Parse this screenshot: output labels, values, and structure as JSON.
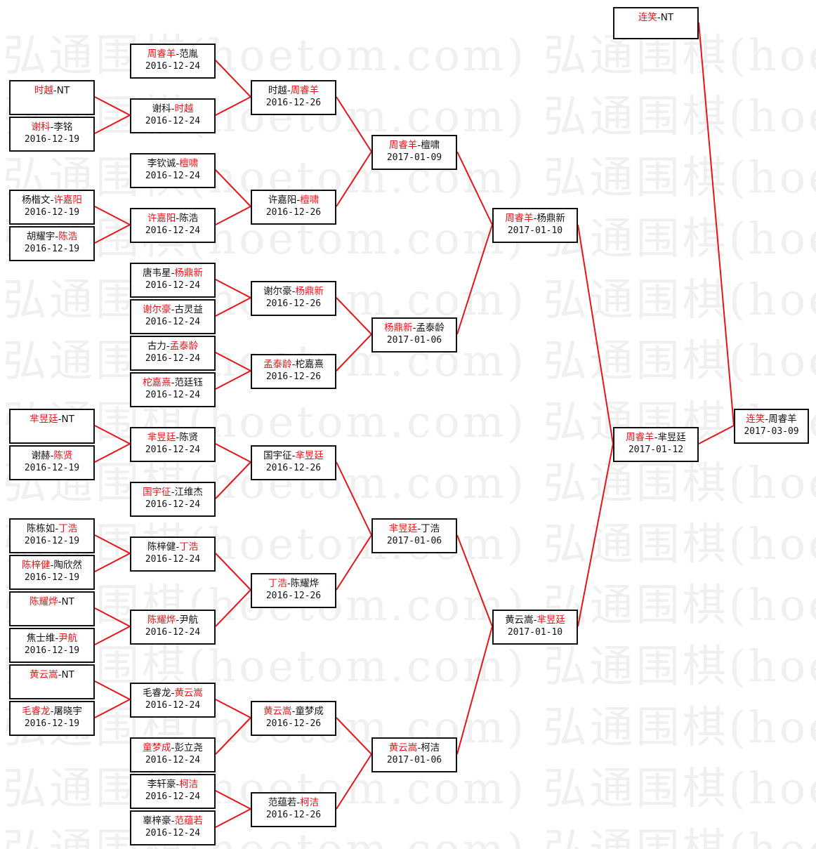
{
  "watermark": "弘通围棋(hoetom.com) 弘通围棋(hoetom.com)",
  "colors": {
    "winner": "#e8141a",
    "line": "#e8141a",
    "text": "#111111",
    "border": "#111111",
    "watermark": "#f0f0f0"
  },
  "matches": [
    {
      "p1": "时越",
      "sep": "-",
      "p2": "NT",
      "winner": 1,
      "date": ""
    },
    {
      "p1": "谢科",
      "sep": "-",
      "p2": "李铭",
      "winner": 1,
      "date": "2016-12-19"
    },
    {
      "p1": "杨楷文",
      "sep": "-",
      "p2": "许嘉阳",
      "winner": 2,
      "date": "2016-12-19"
    },
    {
      "p1": "胡耀宇",
      "sep": "-",
      "p2": "陈浩",
      "winner": 2,
      "date": "2016-12-19"
    },
    {
      "p1": "芈昱廷",
      "sep": "-",
      "p2": "NT",
      "winner": 1,
      "date": ""
    },
    {
      "p1": "谢赫",
      "sep": "-",
      "p2": "陈贤",
      "winner": 2,
      "date": "2016-12-19"
    },
    {
      "p1": "陈栋如",
      "sep": "-",
      "p2": "丁浩",
      "winner": 2,
      "date": "2016-12-19"
    },
    {
      "p1": "陈梓健",
      "sep": "-",
      "p2": "陶欣然",
      "winner": 1,
      "date": "2016-12-19"
    },
    {
      "p1": "陈耀烨",
      "sep": "-",
      "p2": "NT",
      "winner": 1,
      "date": ""
    },
    {
      "p1": "焦士维",
      "sep": "-",
      "p2": "尹航",
      "winner": 2,
      "date": "2016-12-19"
    },
    {
      "p1": "黄云嵩",
      "sep": "-",
      "p2": "NT",
      "winner": 1,
      "date": ""
    },
    {
      "p1": "毛睿龙",
      "sep": "-",
      "p2": "屠晓宇",
      "winner": 1,
      "date": "2016-12-19"
    },
    {
      "p1": "周睿羊",
      "sep": "-",
      "p2": "范胤",
      "winner": 1,
      "date": "2016-12-24"
    },
    {
      "p1": "谢科",
      "sep": "-",
      "p2": "时越",
      "winner": 2,
      "date": "2016-12-24"
    },
    {
      "p1": "李钦诚",
      "sep": "-",
      "p2": "檀啸",
      "winner": 2,
      "date": "2016-12-24"
    },
    {
      "p1": "许嘉阳",
      "sep": "-",
      "p2": "陈浩",
      "winner": 1,
      "date": "2016-12-24"
    },
    {
      "p1": "唐韦星",
      "sep": "-",
      "p2": "杨鼎新",
      "winner": 2,
      "date": "2016-12-24"
    },
    {
      "p1": "谢尔豪",
      "sep": "-",
      "p2": "古灵益",
      "winner": 1,
      "date": "2016-12-24"
    },
    {
      "p1": "古力",
      "sep": "-",
      "p2": "孟泰龄",
      "winner": 2,
      "date": "2016-12-24"
    },
    {
      "p1": "柁嘉熹",
      "sep": "-",
      "p2": "范廷钰",
      "winner": 1,
      "date": "2016-12-24"
    },
    {
      "p1": "芈昱廷",
      "sep": "-",
      "p2": "陈贤",
      "winner": 1,
      "date": "2016-12-24"
    },
    {
      "p1": "国宇征",
      "sep": "-",
      "p2": "江维杰",
      "winner": 1,
      "date": "2016-12-24"
    },
    {
      "p1": "陈梓健",
      "sep": "-",
      "p2": "丁浩",
      "winner": 2,
      "date": "2016-12-24"
    },
    {
      "p1": "陈耀烨",
      "sep": "-",
      "p2": "尹航",
      "winner": 1,
      "date": "2016-12-24"
    },
    {
      "p1": "毛睿龙",
      "sep": "-",
      "p2": "黄云嵩",
      "winner": 2,
      "date": "2016-12-24"
    },
    {
      "p1": "童梦成",
      "sep": "-",
      "p2": "彭立尧",
      "winner": 1,
      "date": "2016-12-24"
    },
    {
      "p1": "李轩豪",
      "sep": "-",
      "p2": "柯洁",
      "winner": 2,
      "date": "2016-12-24"
    },
    {
      "p1": "辜梓豪",
      "sep": "-",
      "p2": "范蕴若",
      "winner": 2,
      "date": "2016-12-24"
    },
    {
      "p1": "时越",
      "sep": "-",
      "p2": "周睿羊",
      "winner": 2,
      "date": "2016-12-26"
    },
    {
      "p1": "许嘉阳",
      "sep": "-",
      "p2": "檀啸",
      "winner": 2,
      "date": "2016-12-26"
    },
    {
      "p1": "谢尔豪",
      "sep": "-",
      "p2": "杨鼎新",
      "winner": 2,
      "date": "2016-12-26"
    },
    {
      "p1": "孟泰龄",
      "sep": "-",
      "p2": "柁嘉熹",
      "winner": 1,
      "date": "2016-12-26"
    },
    {
      "p1": "国宇征",
      "sep": "-",
      "p2": "芈昱廷",
      "winner": 2,
      "date": "2016-12-26"
    },
    {
      "p1": "丁浩",
      "sep": "-",
      "p2": "陈耀烨",
      "winner": 1,
      "date": "2016-12-26"
    },
    {
      "p1": "黄云嵩",
      "sep": "-",
      "p2": "童梦成",
      "winner": 1,
      "date": "2016-12-26"
    },
    {
      "p1": "范蕴若",
      "sep": "-",
      "p2": "柯洁",
      "winner": 2,
      "date": "2016-12-26"
    },
    {
      "p1": "周睿羊",
      "sep": "-",
      "p2": "檀啸",
      "winner": 1,
      "date": "2017-01-09"
    },
    {
      "p1": "杨鼎新",
      "sep": "-",
      "p2": "孟泰龄",
      "winner": 1,
      "date": "2017-01-06"
    },
    {
      "p1": "芈昱廷",
      "sep": "-",
      "p2": "丁浩",
      "winner": 1,
      "date": "2017-01-06"
    },
    {
      "p1": "黄云嵩",
      "sep": "-",
      "p2": "柯洁",
      "winner": 1,
      "date": "2017-01-06"
    },
    {
      "p1": "周睿羊",
      "sep": "-",
      "p2": "杨鼎新",
      "winner": 1,
      "date": "2017-01-10"
    },
    {
      "p1": "黄云嵩",
      "sep": "-",
      "p2": "芈昱廷",
      "winner": 2,
      "date": "2017-01-10"
    },
    {
      "p1": "周睿羊",
      "sep": "-",
      "p2": "芈昱廷",
      "winner": 1,
      "date": "2017-01-12"
    },
    {
      "p1": "连笑",
      "sep": "-",
      "p2": "NT",
      "winner": 1,
      "date": ""
    },
    {
      "p1": "连笑",
      "sep": "-",
      "p2": "周睿羊",
      "winner": 1,
      "date": "2017-03-09"
    }
  ]
}
